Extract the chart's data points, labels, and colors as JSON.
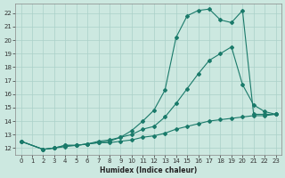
{
  "xlabel": "Humidex (Indice chaleur)",
  "bg_color": "#cce8e0",
  "line_color": "#1a7a6a",
  "grid_color": "#aad0c8",
  "xlim": [
    -0.5,
    23.5
  ],
  "ylim": [
    11.5,
    22.7
  ],
  "xticks": [
    0,
    1,
    2,
    3,
    4,
    5,
    6,
    7,
    8,
    9,
    10,
    11,
    12,
    13,
    14,
    15,
    16,
    17,
    18,
    19,
    20,
    21,
    22,
    23
  ],
  "yticks": [
    12,
    13,
    14,
    15,
    16,
    17,
    18,
    19,
    20,
    21,
    22
  ],
  "line1_x": [
    0,
    2,
    3,
    4,
    5,
    6,
    7,
    8,
    9,
    10,
    11,
    12,
    13,
    14,
    15,
    16,
    17,
    18,
    19,
    20,
    21,
    22,
    23
  ],
  "line1_y": [
    12.5,
    11.9,
    12.0,
    12.1,
    12.2,
    12.3,
    12.4,
    12.4,
    12.5,
    12.6,
    12.8,
    12.9,
    13.1,
    13.4,
    13.6,
    13.8,
    14.0,
    14.1,
    14.2,
    14.3,
    14.4,
    14.4,
    14.5
  ],
  "line2_x": [
    0,
    2,
    3,
    4,
    5,
    6,
    7,
    8,
    9,
    10,
    11,
    12,
    13,
    14,
    15,
    16,
    17,
    18,
    19,
    20,
    21,
    22,
    23
  ],
  "line2_y": [
    12.5,
    11.9,
    12.0,
    12.2,
    12.2,
    12.3,
    12.4,
    12.5,
    12.8,
    13.0,
    13.4,
    13.6,
    14.3,
    15.3,
    16.4,
    17.5,
    18.5,
    19.0,
    19.5,
    16.7,
    15.2,
    14.7,
    14.5
  ],
  "line3_x": [
    0,
    2,
    3,
    4,
    5,
    6,
    7,
    8,
    9,
    10,
    11,
    12,
    13,
    14,
    15,
    16,
    17,
    18,
    19,
    20,
    21,
    22,
    23
  ],
  "line3_y": [
    12.5,
    11.9,
    12.0,
    12.2,
    12.2,
    12.3,
    12.5,
    12.6,
    12.8,
    13.3,
    14.0,
    14.8,
    16.3,
    20.2,
    21.8,
    22.2,
    22.3,
    21.5,
    21.3,
    22.2,
    14.5,
    14.5,
    14.5
  ]
}
